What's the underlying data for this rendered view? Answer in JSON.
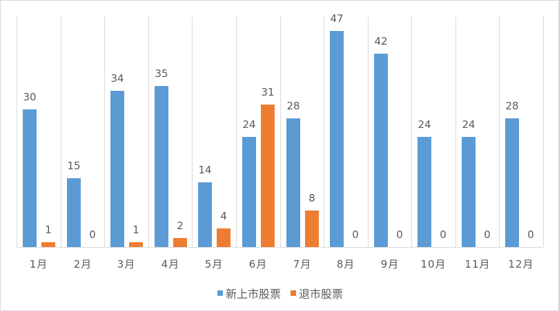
{
  "chart_data": {
    "type": "bar",
    "title": "",
    "xlabel": "",
    "ylabel": "",
    "ylim": [
      0,
      50
    ],
    "grid": "vertical category separators",
    "legend_position": "bottom",
    "categories": [
      "1月",
      "2月",
      "3月",
      "4月",
      "5月",
      "6月",
      "7月",
      "8月",
      "9月",
      "10月",
      "11月",
      "12月"
    ],
    "series": [
      {
        "name": "新上市股票",
        "color": "#5b9bd5",
        "values": [
          30,
          15,
          34,
          35,
          14,
          24,
          28,
          47,
          42,
          24,
          24,
          28
        ]
      },
      {
        "name": "退市股票",
        "color": "#ed7d31",
        "values": [
          1,
          0,
          1,
          2,
          4,
          31,
          8,
          0,
          0,
          0,
          0,
          0
        ]
      }
    ]
  },
  "legend": {
    "items": [
      {
        "label": "新上市股票",
        "color": "#5b9bd5"
      },
      {
        "label": "退市股票",
        "color": "#ed7d31"
      }
    ]
  }
}
